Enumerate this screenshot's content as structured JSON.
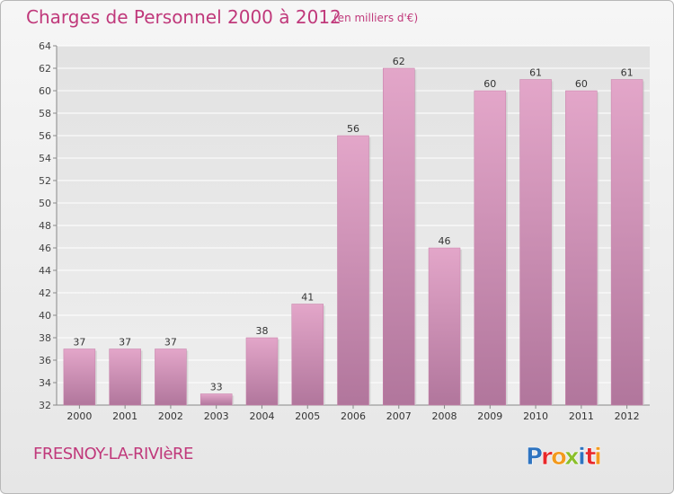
{
  "header": {
    "title": "Charges de Personnel 2000 à 2012",
    "subtitle": "(en milliers d'€)"
  },
  "footer": {
    "place": "FRESNOY-LA-RIVIèRE",
    "brand": "Proxiti",
    "brand_colors": [
      "#2f74c0",
      "#e8282b",
      "#f29a1e",
      "#8bbf2b",
      "#2f74c0",
      "#e8282b",
      "#f29a1e"
    ]
  },
  "chart_data": {
    "type": "bar",
    "categories": [
      "2000",
      "2001",
      "2002",
      "2003",
      "2004",
      "2005",
      "2006",
      "2007",
      "2008",
      "2009",
      "2010",
      "2011",
      "2012"
    ],
    "values": [
      37,
      37,
      37,
      33,
      38,
      41,
      56,
      62,
      46,
      60,
      61,
      60,
      61
    ],
    "ylim": [
      32,
      64
    ],
    "yticks": [
      32,
      34,
      36,
      38,
      40,
      42,
      44,
      46,
      48,
      50,
      52,
      54,
      56,
      58,
      60,
      62,
      64
    ],
    "grid": true,
    "bar_color": "#d98fb8",
    "bar_color_dark": "#b06e96"
  }
}
